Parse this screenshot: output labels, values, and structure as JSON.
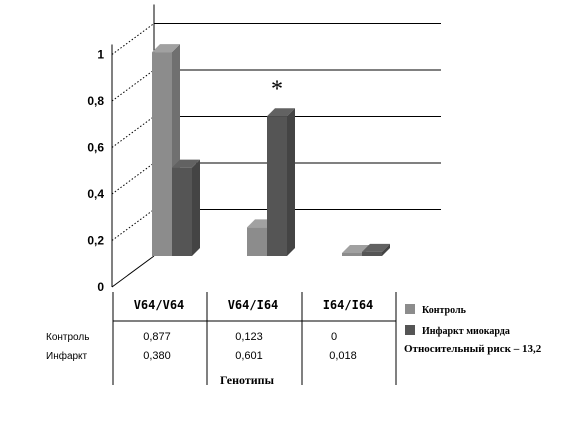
{
  "chart_data": {
    "type": "bar",
    "categories": [
      "V64/V64",
      "V64/I64",
      "I64/I64"
    ],
    "series": [
      {
        "name": "Контроль",
        "values": [
          0.877,
          0.123,
          0
        ],
        "color": "#8c8c8c"
      },
      {
        "name": "Инфаркт миокарда",
        "values": [
          0.38,
          0.601,
          0.018
        ],
        "color": "#555555"
      }
    ],
    "ylim": [
      0,
      1
    ],
    "yticks": [
      "0",
      "0,2",
      "0,4",
      "0,6",
      "0,8",
      "1"
    ],
    "xlabel": "Генотипы",
    "grid": true,
    "legend_position": "right",
    "annotation": "*",
    "annotation_category": "V64/I64"
  },
  "table": {
    "row_labels": [
      "Контроль",
      "Инфаркт"
    ],
    "rows": [
      [
        "0,877",
        "0,123",
        "0"
      ],
      [
        "0,380",
        "0,601",
        "0,018"
      ]
    ]
  },
  "note": "Относительный риск – 13,2"
}
